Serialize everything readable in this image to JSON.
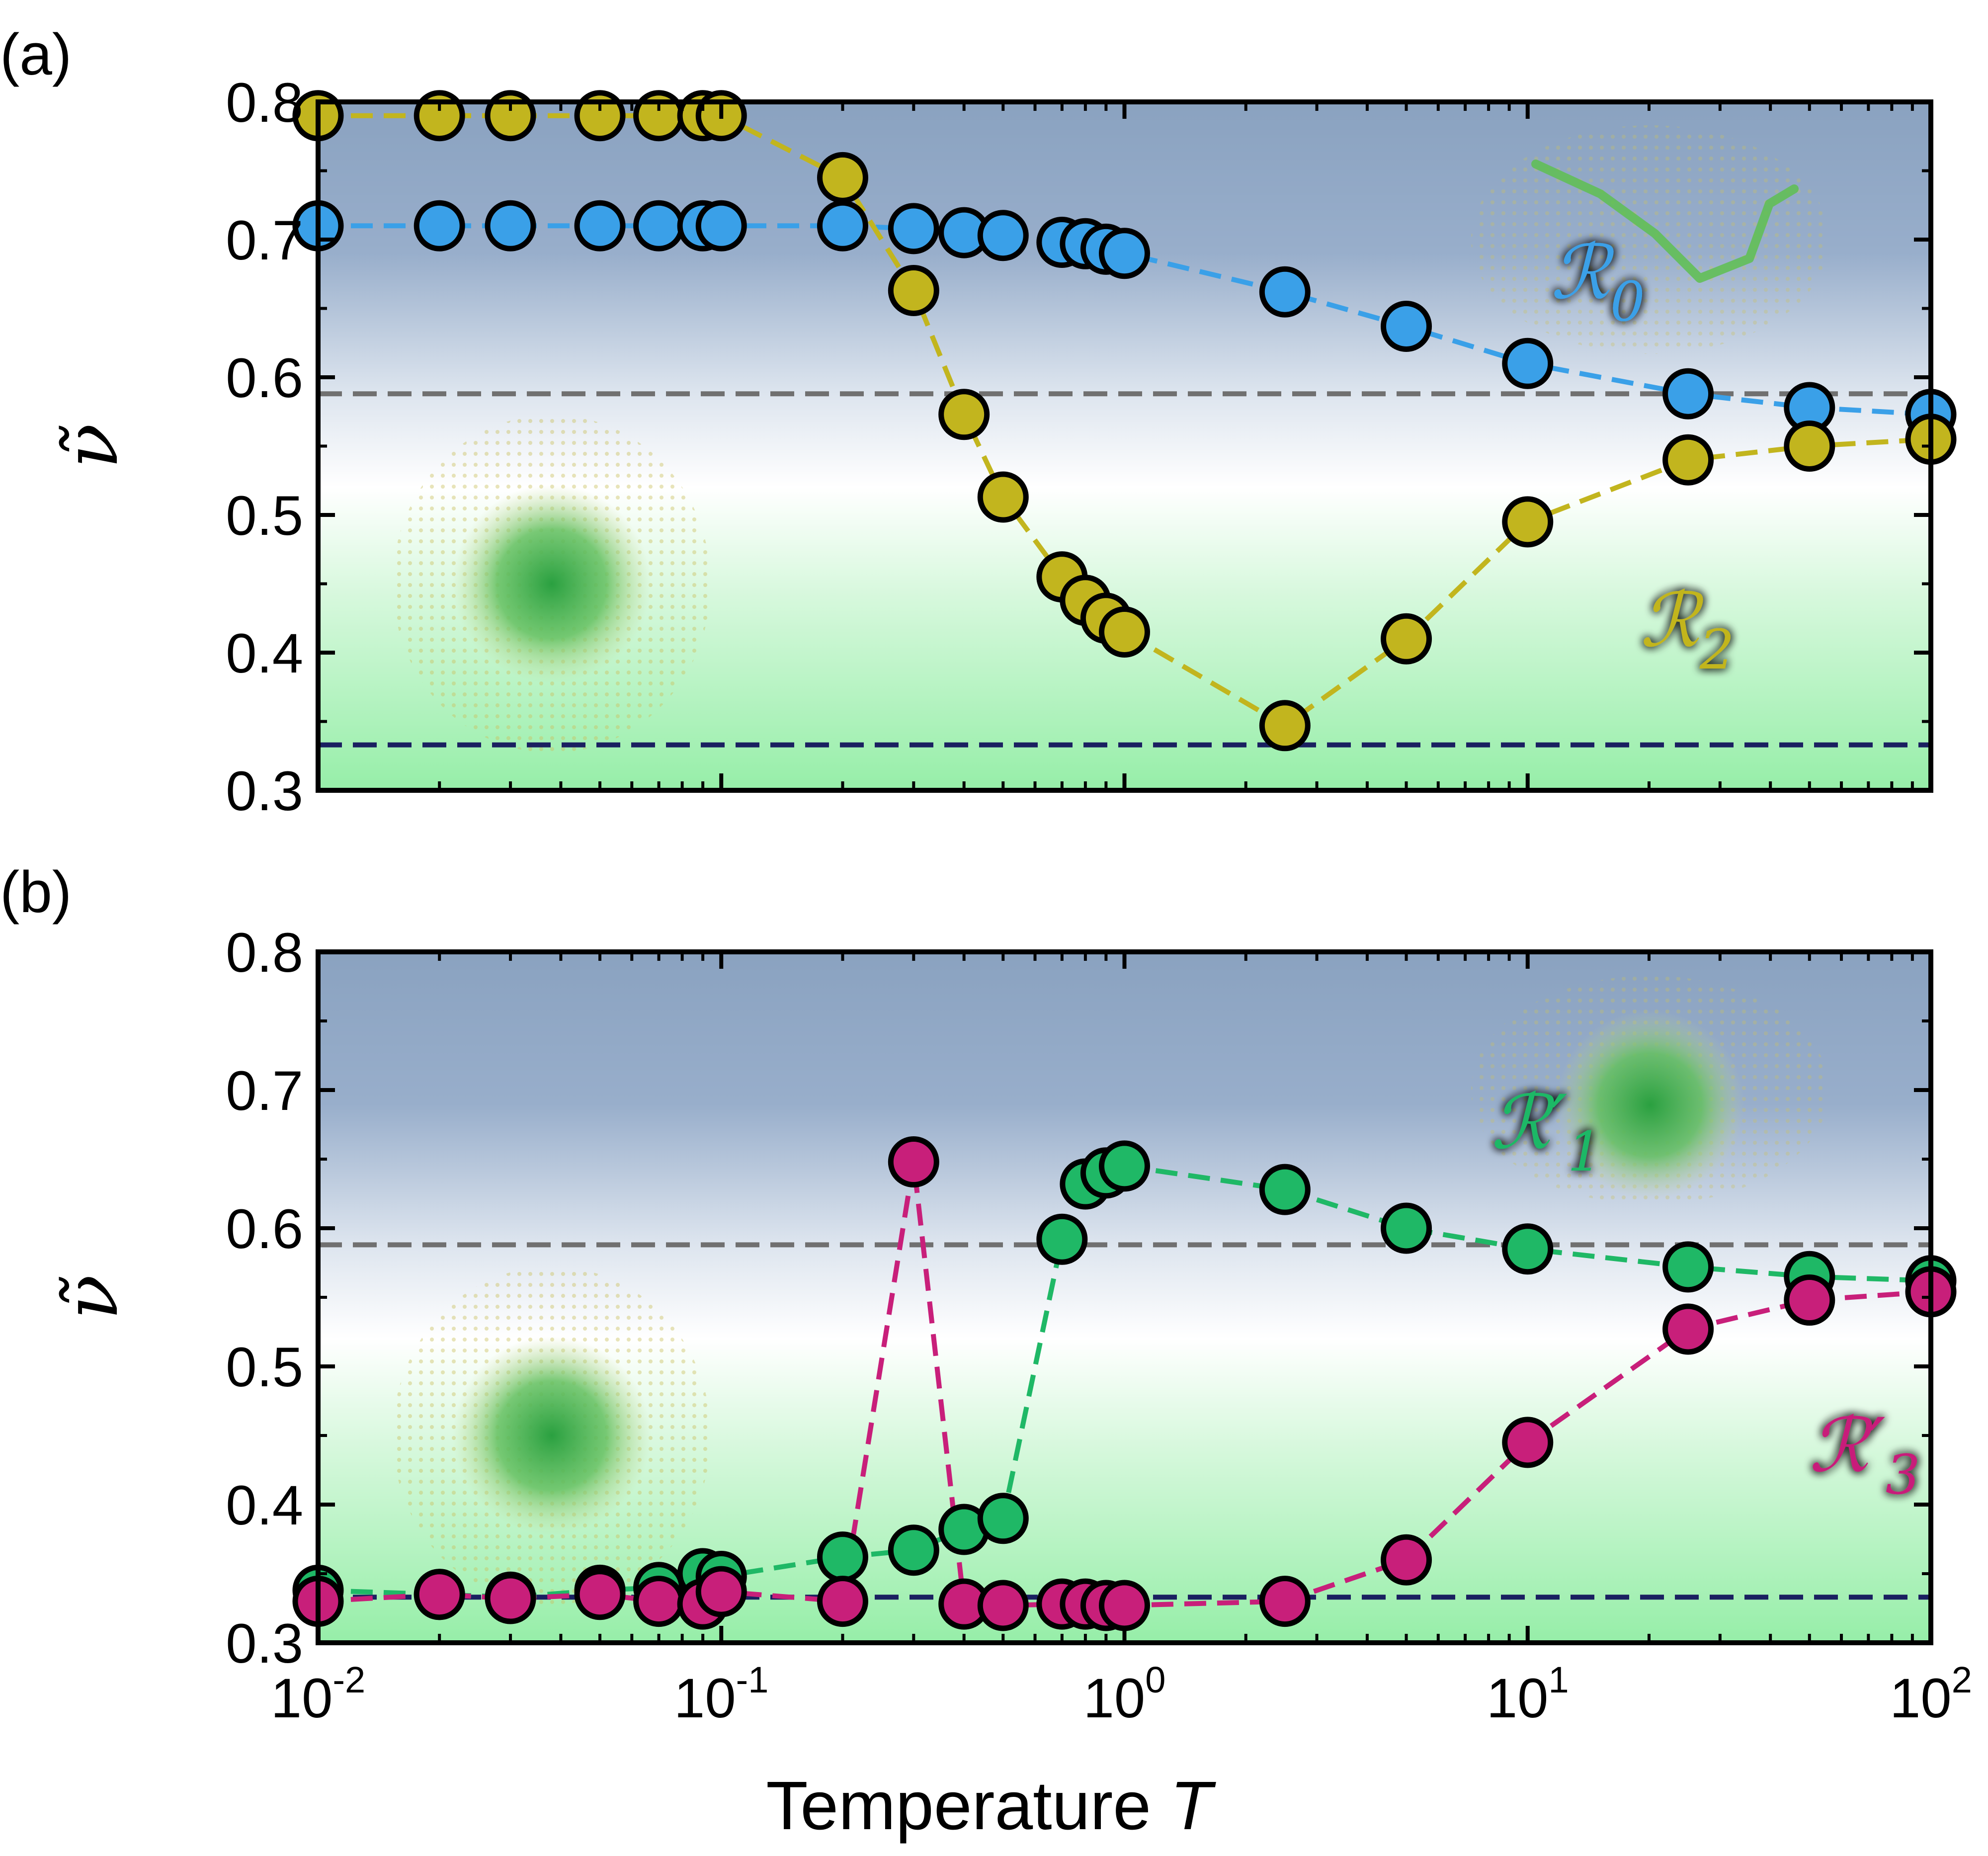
{
  "figure": {
    "xlabel": "Temperature",
    "xlabel_var": "T",
    "x_tick_base": "10",
    "x_tick_exps": [
      "-2",
      "-1",
      "0",
      "1",
      "2"
    ],
    "colors": {
      "blue": "#3aa0e8",
      "olive": "#c2b51e",
      "green": "#1fb866",
      "magenta": "#c81f7a",
      "ref_gray": "#707070",
      "ref_navy": "#1a2060",
      "bg_top": "#8aa2c0",
      "bg_mid": "#ffffff",
      "bg_bottom": "#9ef0ae"
    }
  },
  "chart_data": [
    {
      "type": "scatter",
      "panel": "(a)",
      "ylabel": "ν̃",
      "xscale": "log",
      "xlim": [
        0.01,
        100
      ],
      "ylim": [
        0.3,
        0.8
      ],
      "yticks": [
        "0.3",
        "0.4",
        "0.5",
        "0.6",
        "0.7",
        "0.8"
      ],
      "reference_lines": [
        {
          "name": "upper",
          "y": 0.588,
          "color": "#707070"
        },
        {
          "name": "lower",
          "y": 0.333,
          "color": "#1a2060"
        }
      ],
      "series": [
        {
          "name": "R0",
          "label_letter": "ℛ",
          "label_sub": "0",
          "color": "#3aa0e8",
          "x": [
            0.01,
            0.02,
            0.03,
            0.05,
            0.07,
            0.09,
            0.1,
            0.2,
            0.3,
            0.4,
            0.5,
            0.7,
            0.8,
            0.9,
            1.0,
            2.5,
            5,
            10,
            25,
            50,
            100
          ],
          "y": [
            0.71,
            0.71,
            0.71,
            0.71,
            0.71,
            0.71,
            0.71,
            0.71,
            0.708,
            0.705,
            0.703,
            0.698,
            0.697,
            0.693,
            0.69,
            0.662,
            0.637,
            0.61,
            0.588,
            0.578,
            0.573
          ]
        },
        {
          "name": "R2",
          "label_letter": "ℛ",
          "label_sub": "2",
          "color": "#c2b51e",
          "x": [
            0.01,
            0.02,
            0.03,
            0.05,
            0.07,
            0.09,
            0.1,
            0.2,
            0.3,
            0.4,
            0.5,
            0.7,
            0.8,
            0.9,
            1.0,
            2.5,
            5,
            10,
            25,
            50,
            100
          ],
          "y": [
            0.79,
            0.79,
            0.79,
            0.79,
            0.79,
            0.79,
            0.79,
            0.745,
            0.663,
            0.573,
            0.513,
            0.455,
            0.438,
            0.425,
            0.415,
            0.347,
            0.41,
            0.495,
            0.54,
            0.55,
            0.555
          ]
        }
      ]
    },
    {
      "type": "scatter",
      "panel": "(b)",
      "ylabel": "ν̃",
      "xscale": "log",
      "xlim": [
        0.01,
        100
      ],
      "ylim": [
        0.3,
        0.8
      ],
      "yticks": [
        "0.3",
        "0.4",
        "0.5",
        "0.6",
        "0.7",
        "0.8"
      ],
      "reference_lines": [
        {
          "name": "upper",
          "y": 0.588,
          "color": "#707070"
        },
        {
          "name": "lower",
          "y": 0.333,
          "color": "#1a2060"
        }
      ],
      "series": [
        {
          "name": "R'1",
          "label_letter": "ℛ′",
          "label_sub": "1",
          "color": "#1fb866",
          "x": [
            0.01,
            0.02,
            0.03,
            0.05,
            0.07,
            0.09,
            0.1,
            0.2,
            0.3,
            0.4,
            0.5,
            0.7,
            0.8,
            0.9,
            1.0,
            2.5,
            5,
            10,
            25,
            50,
            100
          ],
          "y": [
            0.338,
            0.335,
            0.333,
            0.338,
            0.34,
            0.35,
            0.348,
            0.362,
            0.367,
            0.382,
            0.39,
            0.592,
            0.632,
            0.64,
            0.645,
            0.628,
            0.6,
            0.585,
            0.572,
            0.565,
            0.562
          ]
        },
        {
          "name": "R'3",
          "label_letter": "ℛ′",
          "label_sub": "3",
          "color": "#c81f7a",
          "x": [
            0.01,
            0.02,
            0.03,
            0.05,
            0.07,
            0.09,
            0.1,
            0.2,
            0.3,
            0.4,
            0.5,
            0.7,
            0.8,
            0.9,
            1.0,
            2.5,
            5,
            10,
            25,
            50,
            100
          ],
          "y": [
            0.33,
            0.335,
            0.332,
            0.335,
            0.33,
            0.328,
            0.337,
            0.33,
            0.648,
            0.328,
            0.327,
            0.328,
            0.328,
            0.327,
            0.327,
            0.33,
            0.36,
            0.445,
            0.527,
            0.548,
            0.554
          ]
        }
      ]
    }
  ]
}
